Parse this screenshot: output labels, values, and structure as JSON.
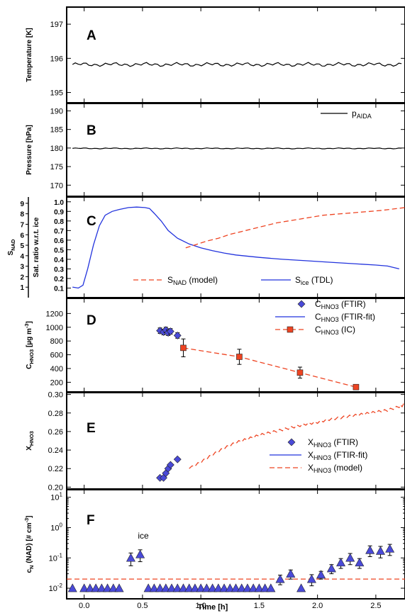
{
  "figure": {
    "x_axis_label": "Time [h]",
    "x_ticks": [
      "0.0",
      "0.5",
      "1.0",
      "1.5",
      "2.0",
      "2.5"
    ],
    "xlim": [
      -0.15,
      2.75
    ]
  },
  "chart_data": [
    {
      "panel_label": "A",
      "type": "line",
      "ylabel": "Temperature [K]",
      "ylim": [
        194.7,
        197.5
      ],
      "yticks": [
        "195",
        "196",
        "197"
      ],
      "series": [
        {
          "color": "#000000",
          "x_start": -0.1,
          "x_end": 2.72,
          "mean": 195.82,
          "amplitude": 0.05
        }
      ]
    },
    {
      "panel_label": "B",
      "type": "line",
      "ylabel": "Pressure [hPa]",
      "ylim": [
        167,
        192
      ],
      "yticks": [
        "170",
        "175",
        "180",
        "185",
        "190"
      ],
      "legend": [
        {
          "label": "p",
          "sub": "AIDA"
        }
      ],
      "series": [
        {
          "name": "pAIDA",
          "color": "#000000",
          "x_start": -0.1,
          "x_end": 2.72,
          "mean": 179.9,
          "amplitude": 0.12
        }
      ]
    },
    {
      "panel_label": "C",
      "type": "line",
      "ylabel_left": {
        "text": "S",
        "sub": "NAD"
      },
      "ylabel_right": "Sat. ratio w.r.t. ice",
      "ylim": [
        0.0,
        1.05
      ],
      "yticks_left": [
        "1",
        "2",
        "3",
        "4",
        "5",
        "6",
        "7",
        "8",
        "9"
      ],
      "yticks_right": [
        "0.1",
        "0.2",
        "0.3",
        "0.4",
        "0.5",
        "0.6",
        "0.7",
        "0.8",
        "0.9",
        "1.0"
      ],
      "legend": [
        {
          "label": "S",
          "sub": "NAD",
          "suffix": " (model)"
        },
        {
          "label": "S",
          "sub": "ice",
          "suffix": " (TDL)"
        }
      ],
      "series": [
        {
          "name": "Sice (TDL)",
          "color": "#2233dd",
          "style": "solid",
          "x": [
            -0.1,
            -0.05,
            -0.01,
            0.03,
            0.08,
            0.13,
            0.18,
            0.24,
            0.3,
            0.38,
            0.45,
            0.52,
            0.56,
            0.6,
            0.66,
            0.72,
            0.8,
            0.9,
            1.0,
            1.1,
            1.2,
            1.3,
            1.5,
            1.7,
            1.9,
            2.1,
            2.3,
            2.5,
            2.6,
            2.7
          ],
          "y": [
            0.11,
            0.1,
            0.13,
            0.3,
            0.55,
            0.75,
            0.86,
            0.9,
            0.92,
            0.94,
            0.945,
            0.94,
            0.93,
            0.88,
            0.8,
            0.7,
            0.62,
            0.56,
            0.52,
            0.49,
            0.465,
            0.445,
            0.42,
            0.4,
            0.385,
            0.37,
            0.355,
            0.34,
            0.33,
            0.3
          ]
        },
        {
          "name": "SNAD (model)",
          "color": "#ee4422",
          "style": "dashed",
          "x": [
            0.87,
            0.95,
            1.05,
            1.15,
            1.25,
            1.35,
            1.45,
            1.55,
            1.65,
            1.75,
            1.85,
            1.95,
            2.05,
            2.15,
            2.25,
            2.35,
            2.45,
            2.55,
            2.65,
            2.75
          ],
          "y": [
            0.52,
            0.55,
            0.59,
            0.62,
            0.66,
            0.69,
            0.72,
            0.75,
            0.78,
            0.8,
            0.82,
            0.84,
            0.86,
            0.87,
            0.88,
            0.89,
            0.9,
            0.91,
            0.925,
            0.94
          ]
        }
      ]
    },
    {
      "panel_label": "D",
      "type": "scatter",
      "ylabel": {
        "text": "C",
        "sub": "HNO3",
        "suffix": " [µg m",
        "sup": "-3",
        "end": "]"
      },
      "ylim": [
        60,
        1420
      ],
      "yticks": [
        "200",
        "400",
        "600",
        "800",
        "1000",
        "1200"
      ],
      "legend": [
        {
          "label": "C",
          "sub": "HNO3",
          "suffix": " (FTIR)"
        },
        {
          "label": "C",
          "sub": "HNO3",
          "suffix": " (FTIR-fit)"
        },
        {
          "label": "C",
          "sub": "HNO3",
          "suffix": " (IC)"
        }
      ],
      "ftir": {
        "color": "#4a4ad8",
        "points": [
          [
            0.65,
            950,
            40
          ],
          [
            0.68,
            930,
            40
          ],
          [
            0.7,
            960,
            40
          ],
          [
            0.72,
            920,
            40
          ],
          [
            0.74,
            940,
            40
          ],
          [
            0.8,
            880,
            40
          ]
        ]
      },
      "ic": {
        "color": "#ee4422",
        "points": [
          [
            0.85,
            700,
            130
          ],
          [
            1.33,
            570,
            110
          ],
          [
            1.85,
            340,
            80
          ],
          [
            2.33,
            130,
            30
          ]
        ]
      }
    },
    {
      "panel_label": "E",
      "type": "scatter",
      "ylabel": {
        "text": "X",
        "sub": "HNO3"
      },
      "ylim": [
        0.198,
        0.302
      ],
      "yticks": [
        "0.20",
        "0.22",
        "0.24",
        "0.26",
        "0.28",
        "0.30"
      ],
      "legend": [
        {
          "label": "X",
          "sub": "HNO3",
          "suffix": " (FTIR)"
        },
        {
          "label": "X",
          "sub": "HNO3",
          "suffix": " (FTIR-fit)"
        },
        {
          "label": "X",
          "sub": "HNO3",
          "suffix": " (model)"
        }
      ],
      "ftir": {
        "color": "#4a4ad8",
        "points": [
          [
            0.65,
            0.21
          ],
          [
            0.68,
            0.21
          ],
          [
            0.7,
            0.215
          ],
          [
            0.72,
            0.22
          ],
          [
            0.74,
            0.224
          ],
          [
            0.8,
            0.23
          ]
        ]
      },
      "model": {
        "color": "#ee4422",
        "x": [
          0.9,
          1.0,
          1.1,
          1.2,
          1.3,
          1.4,
          1.5,
          1.6,
          1.7,
          1.8,
          1.9,
          2.0,
          2.1,
          2.2,
          2.3,
          2.4,
          2.5,
          2.6,
          2.7,
          2.75
        ],
        "y": [
          0.22,
          0.227,
          0.235,
          0.242,
          0.248,
          0.252,
          0.256,
          0.259,
          0.262,
          0.265,
          0.268,
          0.27,
          0.273,
          0.275,
          0.277,
          0.279,
          0.281,
          0.283,
          0.287,
          0.289
        ]
      }
    },
    {
      "panel_label": "F",
      "type": "scatter",
      "ylabel": {
        "text": "c",
        "sub": "N",
        "suffix": " (NAD) [# cm",
        "sup": "-3",
        "end": "]"
      },
      "ylim_log": [
        -2.35,
        1.25
      ],
      "yticks": [
        {
          "b": "10",
          "e": "1"
        },
        {
          "b": "10",
          "e": "0"
        },
        {
          "b": "10",
          "e": "-1"
        },
        {
          "b": "10",
          "e": "-2"
        }
      ],
      "annotation": "ice",
      "threshold": 0.02,
      "color": "#4a4ad8",
      "points": [
        [
          -0.1,
          0.01,
          0
        ],
        [
          0.0,
          0.01,
          0
        ],
        [
          0.05,
          0.01,
          0
        ],
        [
          0.1,
          0.01,
          0
        ],
        [
          0.15,
          0.01,
          0
        ],
        [
          0.2,
          0.01,
          0
        ],
        [
          0.25,
          0.01,
          0
        ],
        [
          0.3,
          0.01,
          0
        ],
        [
          0.4,
          0.1,
          0.045
        ],
        [
          0.48,
          0.13,
          0.055
        ],
        [
          0.55,
          0.01,
          0
        ],
        [
          0.6,
          0.01,
          0
        ],
        [
          0.65,
          0.01,
          0
        ],
        [
          0.7,
          0.01,
          0
        ],
        [
          0.75,
          0.01,
          0
        ],
        [
          0.8,
          0.01,
          0
        ],
        [
          0.85,
          0.01,
          0
        ],
        [
          0.9,
          0.01,
          0
        ],
        [
          0.95,
          0.01,
          0
        ],
        [
          1.0,
          0.01,
          0
        ],
        [
          1.05,
          0.01,
          0
        ],
        [
          1.1,
          0.01,
          0
        ],
        [
          1.15,
          0.01,
          0
        ],
        [
          1.2,
          0.01,
          0
        ],
        [
          1.25,
          0.01,
          0
        ],
        [
          1.3,
          0.01,
          0
        ],
        [
          1.35,
          0.01,
          0
        ],
        [
          1.4,
          0.01,
          0
        ],
        [
          1.45,
          0.01,
          0
        ],
        [
          1.5,
          0.01,
          0
        ],
        [
          1.55,
          0.01,
          0
        ],
        [
          1.6,
          0.01,
          0
        ],
        [
          1.68,
          0.02,
          0.007
        ],
        [
          1.77,
          0.03,
          0.01
        ],
        [
          1.86,
          0.01,
          0
        ],
        [
          1.95,
          0.02,
          0.008
        ],
        [
          2.03,
          0.028,
          0.008
        ],
        [
          2.12,
          0.045,
          0.015
        ],
        [
          2.2,
          0.07,
          0.025
        ],
        [
          2.28,
          0.1,
          0.04
        ],
        [
          2.36,
          0.07,
          0.025
        ],
        [
          2.45,
          0.18,
          0.07
        ],
        [
          2.54,
          0.17,
          0.07
        ],
        [
          2.62,
          0.2,
          0.08
        ]
      ]
    }
  ]
}
